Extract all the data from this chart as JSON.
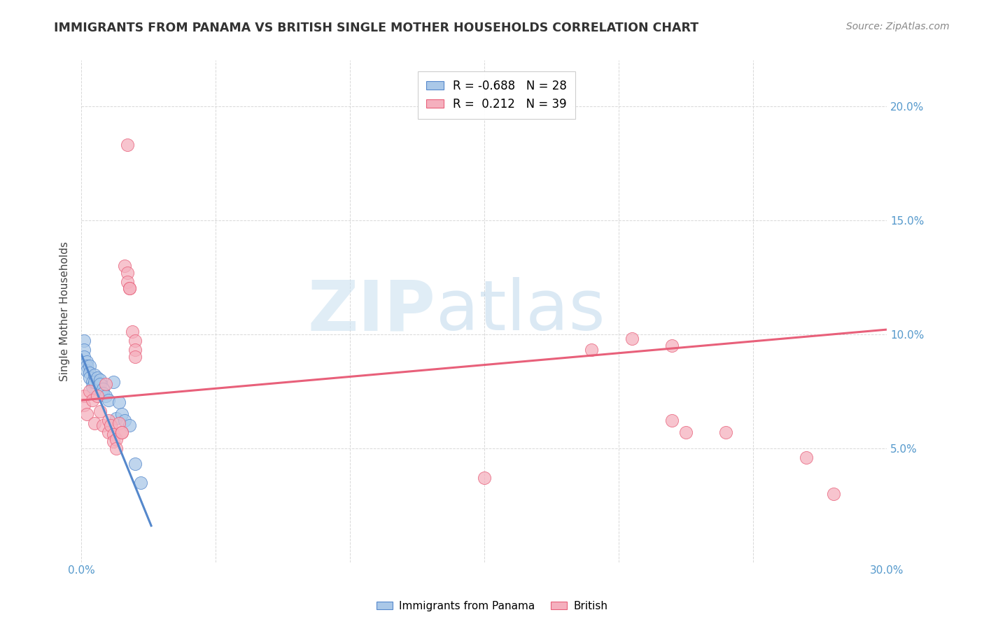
{
  "title": "IMMIGRANTS FROM PANAMA VS BRITISH SINGLE MOTHER HOUSEHOLDS CORRELATION CHART",
  "source": "Source: ZipAtlas.com",
  "ylabel": "Single Mother Households",
  "xlim": [
    0,
    0.3
  ],
  "ylim": [
    0,
    0.22
  ],
  "blue_scatter": [
    [
      0.001,
      0.097
    ],
    [
      0.001,
      0.093
    ],
    [
      0.001,
      0.09
    ],
    [
      0.002,
      0.088
    ],
    [
      0.002,
      0.086
    ],
    [
      0.002,
      0.084
    ],
    [
      0.003,
      0.086
    ],
    [
      0.003,
      0.083
    ],
    [
      0.003,
      0.081
    ],
    [
      0.004,
      0.079
    ],
    [
      0.004,
      0.077
    ],
    [
      0.005,
      0.082
    ],
    [
      0.005,
      0.079
    ],
    [
      0.006,
      0.081
    ],
    [
      0.007,
      0.08
    ],
    [
      0.007,
      0.078
    ],
    [
      0.008,
      0.076
    ],
    [
      0.008,
      0.074
    ],
    [
      0.009,
      0.073
    ],
    [
      0.01,
      0.071
    ],
    [
      0.012,
      0.079
    ],
    [
      0.013,
      0.063
    ],
    [
      0.014,
      0.07
    ],
    [
      0.015,
      0.065
    ],
    [
      0.016,
      0.062
    ],
    [
      0.018,
      0.06
    ],
    [
      0.02,
      0.043
    ],
    [
      0.022,
      0.035
    ]
  ],
  "pink_scatter": [
    [
      0.001,
      0.073
    ],
    [
      0.001,
      0.069
    ],
    [
      0.002,
      0.065
    ],
    [
      0.003,
      0.075
    ],
    [
      0.004,
      0.071
    ],
    [
      0.005,
      0.061
    ],
    [
      0.006,
      0.073
    ],
    [
      0.007,
      0.066
    ],
    [
      0.008,
      0.06
    ],
    [
      0.009,
      0.078
    ],
    [
      0.01,
      0.062
    ],
    [
      0.01,
      0.057
    ],
    [
      0.011,
      0.06
    ],
    [
      0.012,
      0.056
    ],
    [
      0.012,
      0.053
    ],
    [
      0.013,
      0.054
    ],
    [
      0.013,
      0.05
    ],
    [
      0.014,
      0.061
    ],
    [
      0.015,
      0.057
    ],
    [
      0.015,
      0.057
    ],
    [
      0.016,
      0.13
    ],
    [
      0.017,
      0.127
    ],
    [
      0.017,
      0.123
    ],
    [
      0.017,
      0.183
    ],
    [
      0.018,
      0.12
    ],
    [
      0.018,
      0.12
    ],
    [
      0.019,
      0.101
    ],
    [
      0.02,
      0.097
    ],
    [
      0.02,
      0.093
    ],
    [
      0.02,
      0.09
    ],
    [
      0.15,
      0.037
    ],
    [
      0.19,
      0.093
    ],
    [
      0.205,
      0.098
    ],
    [
      0.22,
      0.095
    ],
    [
      0.22,
      0.062
    ],
    [
      0.225,
      0.057
    ],
    [
      0.24,
      0.057
    ],
    [
      0.27,
      0.046
    ],
    [
      0.28,
      0.03
    ]
  ],
  "blue_line_x": [
    0.0,
    0.026
  ],
  "blue_line_y": [
    0.091,
    0.016
  ],
  "pink_line_x": [
    0.0,
    0.3
  ],
  "pink_line_y": [
    0.071,
    0.102
  ],
  "blue_color": "#5588cc",
  "pink_color": "#e8607a",
  "blue_scatter_color": "#aac8e8",
  "pink_scatter_color": "#f5b0be",
  "watermark_zip": "ZIP",
  "watermark_atlas": "atlas",
  "grid_color": "#d8d8d8",
  "background": "#ffffff",
  "title_fontsize": 12.5,
  "source_fontsize": 10,
  "tick_fontsize": 11,
  "ylabel_fontsize": 11
}
